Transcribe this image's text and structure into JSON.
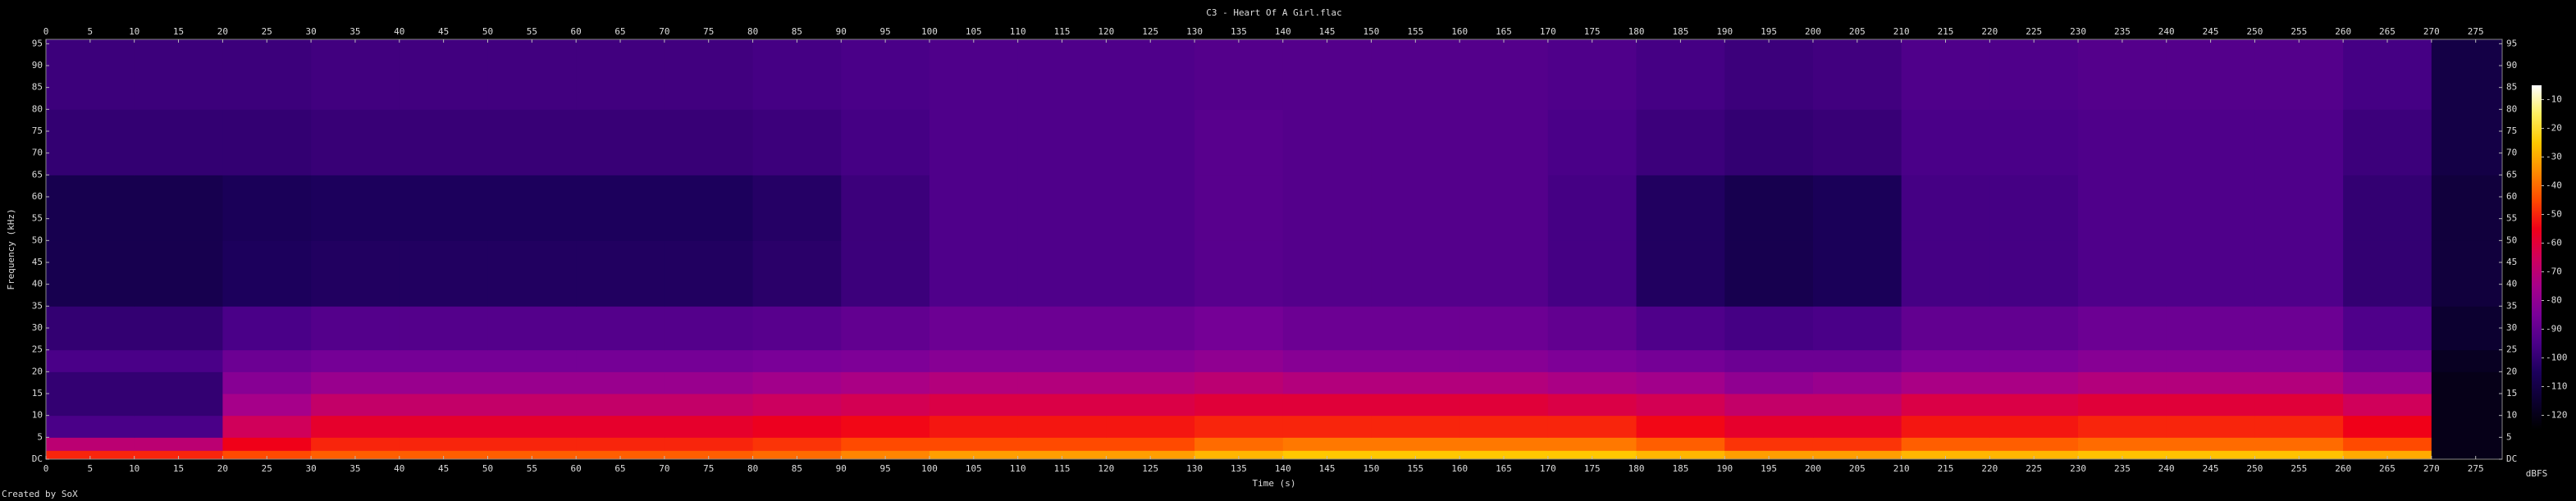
{
  "chart_data": {
    "type": "spectrogram",
    "title": "C3 - Heart Of A Girl.flac",
    "x_label": "Time (s)",
    "y_label": "Frequency (kHz)",
    "footer": "Created by SoX",
    "xlim": [
      0,
      278
    ],
    "ylim": [
      0,
      96
    ],
    "xticks": [
      0,
      5,
      10,
      15,
      20,
      25,
      30,
      35,
      40,
      45,
      50,
      55,
      60,
      65,
      70,
      75,
      80,
      85,
      90,
      95,
      100,
      105,
      110,
      115,
      120,
      125,
      130,
      135,
      140,
      145,
      150,
      155,
      160,
      165,
      170,
      175,
      180,
      185,
      190,
      195,
      200,
      205,
      210,
      215,
      220,
      225,
      230,
      235,
      240,
      245,
      250,
      255,
      260,
      265,
      270,
      275
    ],
    "yticks": [
      {
        "value": 0,
        "label": "DC"
      },
      5,
      10,
      15,
      20,
      25,
      30,
      35,
      40,
      45,
      50,
      55,
      60,
      65,
      70,
      75,
      80,
      85,
      90,
      95
    ],
    "time_bins": [
      0,
      10,
      20,
      30,
      40,
      50,
      60,
      70,
      80,
      90,
      100,
      110,
      120,
      130,
      140,
      150,
      160,
      170,
      180,
      190,
      200,
      210,
      220,
      230,
      240,
      250,
      260,
      270,
      278
    ],
    "freq_bins": [
      0,
      2,
      5,
      10,
      15,
      20,
      25,
      35,
      50,
      65,
      80,
      96
    ],
    "z": [
      [
        -50,
        -50,
        -45,
        -42,
        -42,
        -42,
        -42,
        -42,
        -40,
        -36,
        -32,
        -32,
        -32,
        -28,
        -25,
        -25,
        -25,
        -25,
        -28,
        -32,
        -32,
        -28,
        -28,
        -26,
        -26,
        -26,
        -30,
        -120
      ],
      [
        -70,
        -70,
        -55,
        -50,
        -50,
        -50,
        -50,
        -50,
        -48,
        -45,
        -45,
        -45,
        -45,
        -40,
        -38,
        -38,
        -38,
        -38,
        -42,
        -48,
        -48,
        -42,
        -42,
        -40,
        -40,
        -40,
        -45,
        -120
      ],
      [
        -95,
        -95,
        -65,
        -58,
        -58,
        -58,
        -58,
        -58,
        -56,
        -54,
        -52,
        -52,
        -52,
        -50,
        -50,
        -50,
        -50,
        -50,
        -54,
        -58,
        -58,
        -52,
        -52,
        -50,
        -50,
        -50,
        -55,
        -120
      ],
      [
        -100,
        -100,
        -75,
        -68,
        -68,
        -68,
        -68,
        -68,
        -66,
        -64,
        -62,
        -62,
        -62,
        -60,
        -60,
        -60,
        -60,
        -62,
        -64,
        -68,
        -68,
        -62,
        -62,
        -60,
        -60,
        -60,
        -65,
        -120
      ],
      [
        -100,
        -100,
        -82,
        -78,
        -78,
        -78,
        -78,
        -78,
        -76,
        -74,
        -72,
        -72,
        -72,
        -70,
        -72,
        -72,
        -72,
        -74,
        -76,
        -80,
        -78,
        -74,
        -74,
        -72,
        -72,
        -72,
        -78,
        -120
      ],
      [
        -95,
        -95,
        -88,
        -86,
        -86,
        -86,
        -86,
        -86,
        -85,
        -84,
        -82,
        -82,
        -82,
        -80,
        -82,
        -82,
        -82,
        -84,
        -86,
        -88,
        -88,
        -84,
        -84,
        -82,
        -82,
        -82,
        -88,
        -118
      ],
      [
        -100,
        -100,
        -95,
        -93,
        -93,
        -93,
        -93,
        -93,
        -92,
        -90,
        -88,
        -88,
        -88,
        -86,
        -88,
        -88,
        -88,
        -90,
        -94,
        -96,
        -95,
        -90,
        -90,
        -88,
        -88,
        -88,
        -94,
        -115
      ],
      [
        -108,
        -108,
        -105,
        -104,
        -104,
        -104,
        -104,
        -104,
        -102,
        -98,
        -94,
        -94,
        -94,
        -92,
        -93,
        -93,
        -93,
        -96,
        -104,
        -108,
        -106,
        -96,
        -96,
        -94,
        -94,
        -94,
        -100,
        -112
      ],
      [
        -108,
        -108,
        -106,
        -105,
        -105,
        -105,
        -105,
        -105,
        -103,
        -98,
        -94,
        -94,
        -94,
        -92,
        -93,
        -93,
        -93,
        -96,
        -104,
        -108,
        -106,
        -96,
        -96,
        -94,
        -94,
        -94,
        -100,
        -112
      ],
      [
        -100,
        -100,
        -100,
        -99,
        -99,
        -99,
        -99,
        -99,
        -98,
        -96,
        -94,
        -94,
        -94,
        -92,
        -93,
        -93,
        -93,
        -95,
        -98,
        -100,
        -99,
        -95,
        -95,
        -94,
        -94,
        -94,
        -98,
        -110
      ],
      [
        -98,
        -98,
        -98,
        -97,
        -97,
        -97,
        -97,
        -97,
        -96,
        -95,
        -94,
        -94,
        -94,
        -93,
        -93,
        -93,
        -93,
        -94,
        -96,
        -98,
        -97,
        -94,
        -94,
        -93,
        -93,
        -93,
        -96,
        -110
      ]
    ],
    "clim": [
      -125,
      -5
    ],
    "colormap": [
      "#000000",
      "#0c0030",
      "#1c005c",
      "#4a0088",
      "#7a0098",
      "#a6008a",
      "#d0005a",
      "#f00018",
      "#ff4a00",
      "#ff8c00",
      "#ffc800",
      "#fff060",
      "#ffffff"
    ],
    "colorbar": {
      "label": "dBFS",
      "ticks": [
        -10,
        -20,
        -30,
        -40,
        -50,
        -60,
        -70,
        -80,
        -90,
        -100,
        -110,
        -120
      ]
    }
  }
}
